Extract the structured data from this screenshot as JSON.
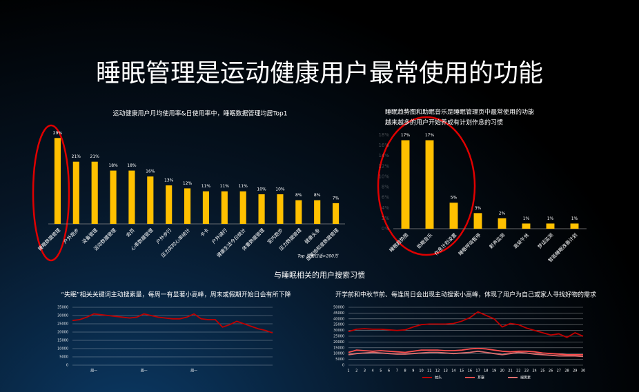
{
  "header": {
    "title": "睡眠管理是运动健康用户最常使用的功能",
    "section": "与睡眠相关的用户搜索习惯"
  },
  "chart_data": [
    {
      "type": "bar",
      "title": "运动健康用户月均使用率&日使用率中，睡眠数据管理均居Top1",
      "color": "#ffc000",
      "categories": [
        "睡眠数据管理",
        "户外跑步",
        "设备管理",
        "运动数据管理",
        "会员",
        "心率数据管理",
        "户外步行",
        "压力实时心率统计",
        "卡卡",
        "户外骑行",
        "健康生活今日统计",
        "体重数据管理",
        "室内跑步",
        "压力数据管理",
        "健康头条",
        "血氧饱和度数据管理"
      ],
      "values": [
        29,
        21,
        21,
        18,
        18,
        16,
        13,
        12,
        11,
        11,
        11,
        10,
        10,
        8,
        8,
        7
      ],
      "value_labels": [
        "29%",
        "21%",
        "21%",
        "18%",
        "18%",
        "16%",
        "13%",
        "12%",
        "11%",
        "11%",
        "11%",
        "10%",
        "10%",
        "8%",
        "8%",
        "7%"
      ],
      "annotation": "Top 页面日活>200万"
    },
    {
      "type": "bar",
      "title": "睡眠趋势图和助眠音乐是睡眠管理页中最常使用的功能",
      "subtitle": "越来越多的用户开始养成有计划作息的习惯",
      "color": "#ffc000",
      "categories": [
        "睡眠趋势图",
        "助眠音乐",
        "作息计划设置",
        "睡眠呼吸暂停",
        "鼾声监测",
        "高效午休",
        "梦话监测",
        "智能睡眠改善计划"
      ],
      "values": [
        17,
        17,
        5,
        3,
        2,
        1,
        1,
        1
      ],
      "value_labels": [
        "17%",
        "17%",
        "5%",
        "3%",
        "2%",
        "1%",
        "1%",
        "1%"
      ],
      "ylim": [
        0,
        18
      ],
      "yticks": [
        {
          "value": 0,
          "label": "0%"
        },
        {
          "value": 2,
          "label": "2%"
        },
        {
          "value": 4,
          "label": "4%"
        },
        {
          "value": 6,
          "label": "6%"
        },
        {
          "value": 8,
          "label": "8%"
        },
        {
          "value": 10,
          "label": "10%"
        },
        {
          "value": 12,
          "label": "12%"
        },
        {
          "value": 14,
          "label": "14%"
        },
        {
          "value": 16,
          "label": "16%"
        },
        {
          "value": 18,
          "label": "18%"
        }
      ]
    },
    {
      "type": "line",
      "title": "“失眠”相关关键词主动搜索量，每周一有显著小高峰，周末或假期开始日会有所下降",
      "grid": true,
      "categories": [
        null,
        null,
        null,
        "周一",
        null,
        null,
        null,
        null,
        null,
        null,
        "周一",
        null,
        null,
        null,
        null,
        null,
        null,
        "周一",
        null,
        null,
        null,
        null,
        null,
        null,
        null,
        null,
        null,
        null,
        null
      ],
      "series": [
        {
          "name": "失眠",
          "color": "#c00000",
          "values": [
            27000,
            27500,
            29000,
            31000,
            30500,
            30000,
            29500,
            29000,
            28500,
            29000,
            31000,
            30000,
            29000,
            28500,
            28000,
            28000,
            29000,
            31000,
            28000,
            27500,
            27500,
            23000,
            24500,
            26500,
            25000,
            23500,
            22000,
            21000,
            19500
          ]
        }
      ],
      "ylim": [
        0,
        35000
      ],
      "yticks": [
        0,
        5000,
        10000,
        15000,
        20000,
        25000,
        30000,
        35000
      ]
    },
    {
      "type": "line",
      "title": "开学前和中秋节前、每逢周日会出现主动搜索小高峰，体现了用户为自己或家人寻找好物的需求",
      "grid": true,
      "categories": [
        "1",
        "2",
        "3",
        "4",
        "5",
        "6",
        "7",
        "8",
        "9",
        "10",
        "11",
        "12",
        "13",
        "14",
        "15",
        "16",
        "17",
        "18",
        "19",
        "20",
        "21",
        "22",
        "23",
        "24",
        "25",
        "26",
        "27",
        "28",
        "29",
        "30"
      ],
      "series": [
        {
          "name": "枕头",
          "color": "#c00000",
          "values": [
            29000,
            31000,
            31500,
            31000,
            31000,
            30500,
            30000,
            30500,
            33000,
            35000,
            35500,
            35500,
            35500,
            36000,
            38000,
            41000,
            46000,
            43000,
            40000,
            33000,
            36000,
            35000,
            32000,
            30000,
            28000,
            26000,
            27000,
            24000,
            28000,
            25000
          ]
        },
        {
          "name": "耳塞",
          "color": "#ff4d4d",
          "values": [
            11000,
            13000,
            12500,
            12000,
            12500,
            12000,
            11500,
            11000,
            12000,
            13000,
            13000,
            13000,
            12500,
            12500,
            13000,
            14000,
            14500,
            14000,
            13000,
            12000,
            11500,
            12000,
            12000,
            11500,
            10500,
            10000,
            9500,
            9000,
            9000,
            9000
          ]
        },
        {
          "name": "褪黑素",
          "color": "#e07070",
          "values": [
            9000,
            10000,
            10500,
            11000,
            10500,
            10000,
            9500,
            9500,
            10000,
            10500,
            11000,
            11000,
            10500,
            10000,
            10500,
            11000,
            12000,
            11000,
            10000,
            9000,
            10000,
            11000,
            10500,
            9500,
            9000,
            8500,
            8000,
            8000,
            8000,
            7500
          ]
        }
      ],
      "ylim": [
        0,
        50000
      ],
      "yticks": [
        0,
        5000,
        10000,
        15000,
        20000,
        25000,
        30000,
        35000,
        40000,
        45000,
        50000
      ]
    }
  ]
}
